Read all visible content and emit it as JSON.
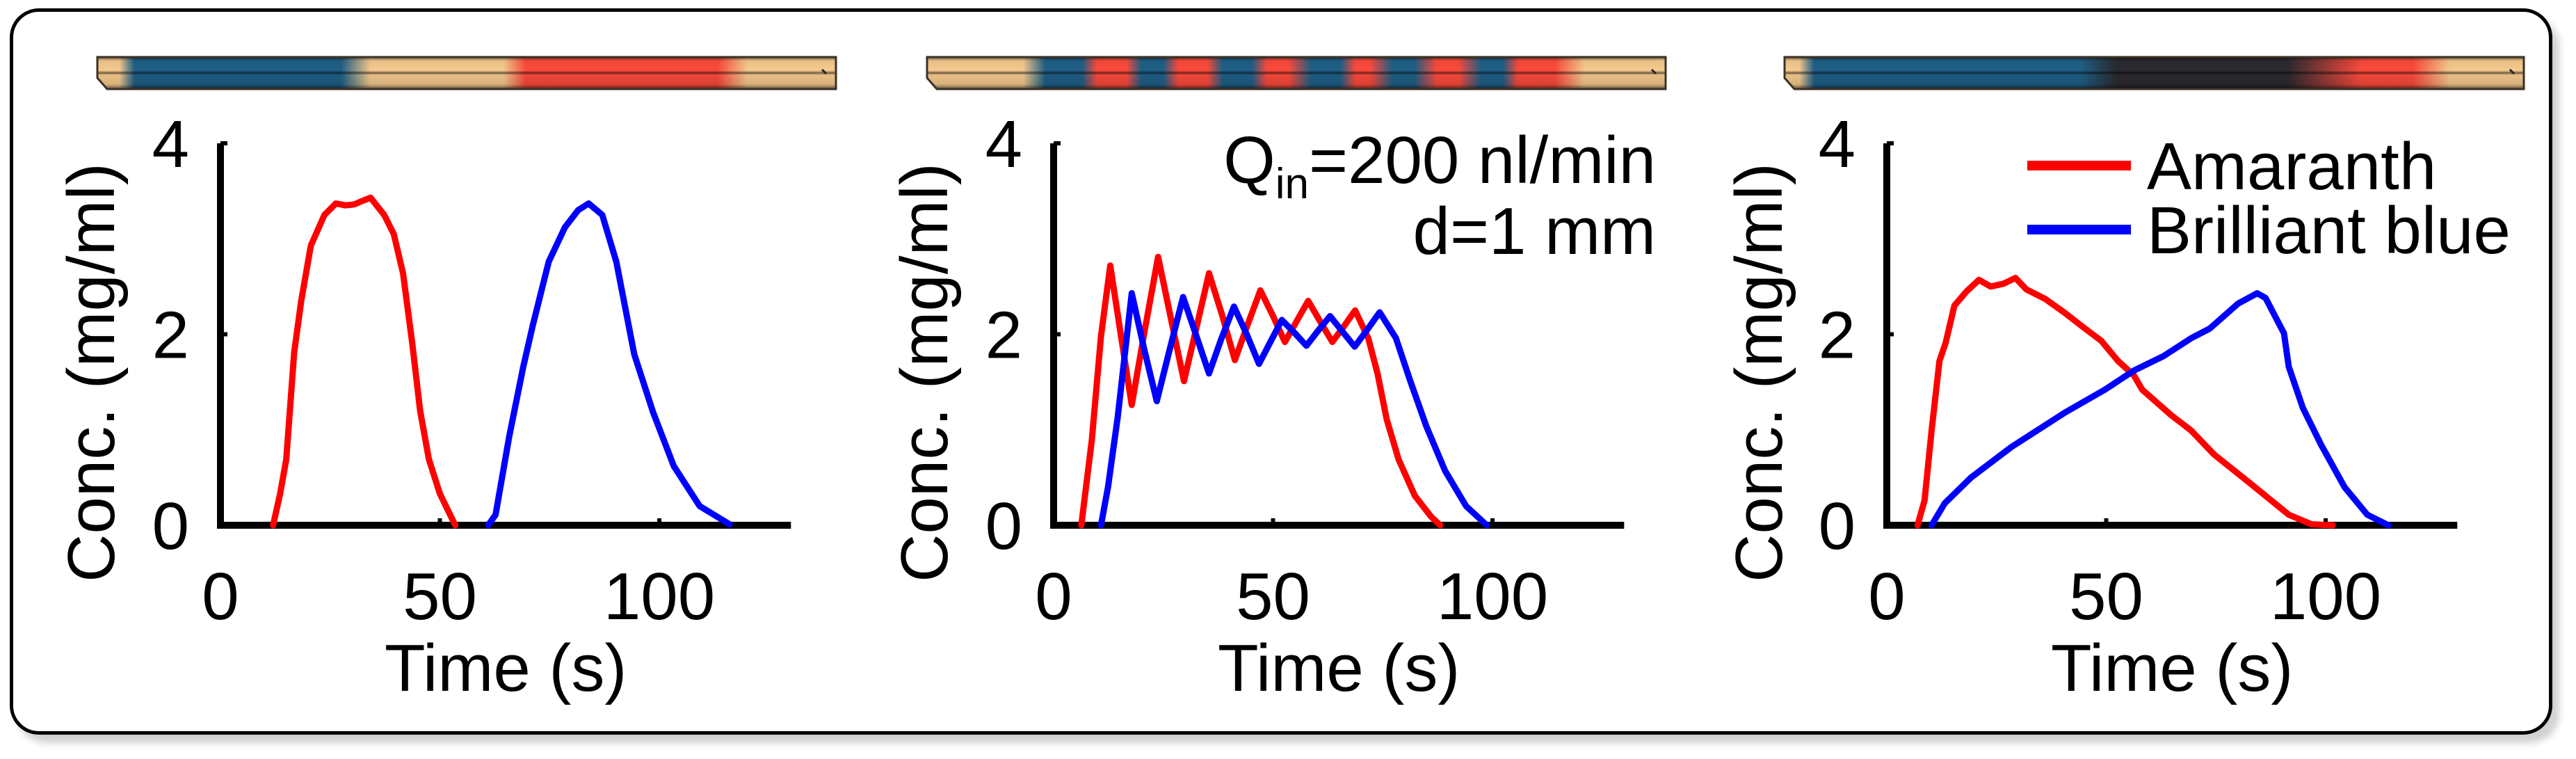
{
  "colors": {
    "amaranth": "#ff0000",
    "brilliant_blue": "#0000ff",
    "axis": "#000000",
    "channel_tan": "#f5c98e",
    "channel_blue": "#1f5f86",
    "channel_red": "#fb4a3c",
    "channel_dark": "#2a2a30"
  },
  "chart_data": [
    {
      "type": "line",
      "panel": "left",
      "xlabel": "Time (s)",
      "ylabel": "Conc. (mg/ml)",
      "xlim": [
        0,
        130
      ],
      "ylim": [
        0,
        4
      ],
      "xticks": [
        0,
        50,
        100
      ],
      "yticks": [
        0,
        2,
        4
      ],
      "grid": false,
      "channel_image": {
        "description": "micrograph strip of channel showing dye segments",
        "bands": [
          {
            "from": 0.0,
            "to": 0.03,
            "color": "tan"
          },
          {
            "from": 0.05,
            "to": 0.33,
            "color": "blue"
          },
          {
            "from": 0.37,
            "to": 0.55,
            "color": "tan"
          },
          {
            "from": 0.58,
            "to": 0.84,
            "color": "red"
          },
          {
            "from": 0.88,
            "to": 1.0,
            "color": "tan"
          }
        ]
      },
      "series": [
        {
          "name": "Amaranth",
          "color": "#ff0000",
          "x": [
            12,
            13.6,
            15,
            16.8,
            18.4,
            20.6,
            23.7,
            26.3,
            28.5,
            30.5,
            32.5,
            34.2,
            37.3,
            39.5,
            41.6,
            43.7,
            45.5,
            47.5,
            50,
            53.5
          ],
          "y": [
            0,
            0.33,
            0.69,
            1.81,
            2.35,
            2.93,
            3.25,
            3.37,
            3.35,
            3.36,
            3.4,
            3.43,
            3.25,
            3.05,
            2.64,
            1.91,
            1.2,
            0.69,
            0.33,
            0
          ]
        },
        {
          "name": "Brilliant blue",
          "color": "#0000ff",
          "x": [
            61,
            62.7,
            65.8,
            69,
            71.2,
            74.8,
            78.5,
            81.5,
            83.9,
            87,
            90.2,
            94.3,
            98.6,
            103.3,
            109.2,
            116
          ],
          "y": [
            0,
            0.11,
            0.93,
            1.66,
            2.1,
            2.76,
            3.12,
            3.3,
            3.37,
            3.25,
            2.76,
            1.79,
            1.18,
            0.62,
            0.2,
            0.01
          ]
        }
      ]
    },
    {
      "type": "line",
      "panel": "middle",
      "xlabel": "Time (s)",
      "ylabel": "Conc. (mg/ml)",
      "xlim": [
        0,
        130
      ],
      "ylim": [
        0,
        4
      ],
      "xticks": [
        0,
        50,
        100
      ],
      "yticks": [
        0,
        2,
        4
      ],
      "grid": false,
      "annotation": {
        "line1_main": "Q",
        "line1_sub": "in",
        "line1_rest": "=200 nl/min",
        "line2": "d=1 mm"
      },
      "channel_image": {
        "description": "micrograph strip of channel showing alternating dye segments",
        "bands": [
          {
            "from": 0.0,
            "to": 0.13,
            "color": "tan"
          },
          {
            "from": 0.16,
            "to": 0.21,
            "color": "blue"
          },
          {
            "from": 0.23,
            "to": 0.27,
            "color": "red"
          },
          {
            "from": 0.29,
            "to": 0.32,
            "color": "blue"
          },
          {
            "from": 0.34,
            "to": 0.38,
            "color": "red"
          },
          {
            "from": 0.4,
            "to": 0.44,
            "color": "blue"
          },
          {
            "from": 0.46,
            "to": 0.49,
            "color": "red"
          },
          {
            "from": 0.52,
            "to": 0.56,
            "color": "blue"
          },
          {
            "from": 0.58,
            "to": 0.6,
            "color": "red"
          },
          {
            "from": 0.63,
            "to": 0.66,
            "color": "blue"
          },
          {
            "from": 0.69,
            "to": 0.72,
            "color": "red"
          },
          {
            "from": 0.75,
            "to": 0.78,
            "color": "blue"
          },
          {
            "from": 0.8,
            "to": 0.85,
            "color": "red"
          },
          {
            "from": 0.89,
            "to": 1.0,
            "color": "tan"
          }
        ]
      },
      "series": [
        {
          "name": "Amaranth",
          "color": "#ff0000",
          "x": [
            6.3,
            8.7,
            10.8,
            12.9,
            15.3,
            17.8,
            20.8,
            23.8,
            26.8,
            29.7,
            32.6,
            35.4,
            38.4,
            41.3,
            44.2,
            47.1,
            49.9,
            52.7,
            55.3,
            58,
            60.8,
            63.5,
            66.1,
            68.7,
            71.7,
            73.8,
            75.9,
            78.6,
            82.3,
            86,
            88.1
          ],
          "y": [
            0,
            0.89,
            1.98,
            2.72,
            2.0,
            1.26,
            2.05,
            2.81,
            2.15,
            1.51,
            2.08,
            2.64,
            2.2,
            1.73,
            2.1,
            2.46,
            2.2,
            1.92,
            2.13,
            2.35,
            2.13,
            1.92,
            2.08,
            2.25,
            1.96,
            1.59,
            1.11,
            0.69,
            0.31,
            0.09,
            0
          ]
        },
        {
          "name": "Brilliant blue",
          "color": "#0000ff",
          "x": [
            10.8,
            12.4,
            14.6,
            17.8,
            20.6,
            23.5,
            26.5,
            29.5,
            32.4,
            35.4,
            38.2,
            41.1,
            44.0,
            46.8,
            49.4,
            52,
            54.8,
            57.6,
            60.3,
            63,
            65.8,
            68.6,
            71.5,
            74.3,
            78,
            81.2,
            84.9,
            89.2,
            94,
            98.7
          ],
          "y": [
            0,
            0.4,
            1.13,
            2.43,
            1.85,
            1.3,
            1.85,
            2.39,
            2.0,
            1.59,
            1.95,
            2.29,
            2.0,
            1.69,
            1.92,
            2.15,
            2.02,
            1.88,
            2.04,
            2.19,
            2.03,
            1.87,
            2.05,
            2.23,
            1.96,
            1.52,
            1.04,
            0.57,
            0.2,
            0
          ]
        }
      ]
    },
    {
      "type": "line",
      "panel": "right",
      "xlabel": "Time (s)",
      "ylabel": "Conc. (mg/ml)",
      "xlim": [
        0,
        130
      ],
      "ylim": [
        0,
        4
      ],
      "xticks": [
        0,
        50,
        100
      ],
      "yticks": [
        0,
        2,
        4
      ],
      "grid": false,
      "legend": {
        "placement": "top-right",
        "entries": [
          "Amaranth",
          "Brilliant blue"
        ]
      },
      "channel_image": {
        "description": "micrograph strip of channel showing blue-to-red gradient",
        "bands": [
          {
            "from": 0.0,
            "to": 0.02,
            "color": "tan"
          },
          {
            "from": 0.04,
            "to": 0.4,
            "color": "blue"
          },
          {
            "from": 0.45,
            "to": 0.68,
            "color": "dark"
          },
          {
            "from": 0.78,
            "to": 0.85,
            "color": "red"
          },
          {
            "from": 0.9,
            "to": 1.0,
            "color": "tan"
          }
        ]
      },
      "series": [
        {
          "name": "Amaranth",
          "color": "#ff0000",
          "x": [
            7,
            8.6,
            10.2,
            12,
            13.4,
            15.4,
            18.2,
            21,
            23.7,
            26.6,
            29.3,
            31.8,
            36.1,
            40.4,
            44.6,
            48.9,
            52.7,
            56.3,
            58.2,
            64.9,
            69.4,
            74.6,
            82.5,
            91.6,
            96.8,
            101.6
          ],
          "y": [
            0,
            0.26,
            0.99,
            1.72,
            1.91,
            2.3,
            2.45,
            2.57,
            2.5,
            2.53,
            2.59,
            2.47,
            2.37,
            2.23,
            2.08,
            1.93,
            1.72,
            1.57,
            1.42,
            1.15,
            0.99,
            0.74,
            0.45,
            0.11,
            0.01,
            0
          ]
        },
        {
          "name": "Brilliant blue",
          "color": "#0000ff",
          "x": [
            10.2,
            13.2,
            19.2,
            28.4,
            40.6,
            49.7,
            56.3,
            63,
            69.4,
            73.6,
            80,
            84.4,
            86.3,
            90.5,
            91.6,
            94.8,
            99,
            104.3,
            109.5,
            114.3
          ],
          "y": [
            0,
            0.23,
            0.5,
            0.82,
            1.18,
            1.42,
            1.62,
            1.77,
            1.96,
            2.06,
            2.32,
            2.43,
            2.38,
            2.01,
            1.66,
            1.23,
            0.84,
            0.4,
            0.11,
            0
          ]
        }
      ]
    }
  ]
}
